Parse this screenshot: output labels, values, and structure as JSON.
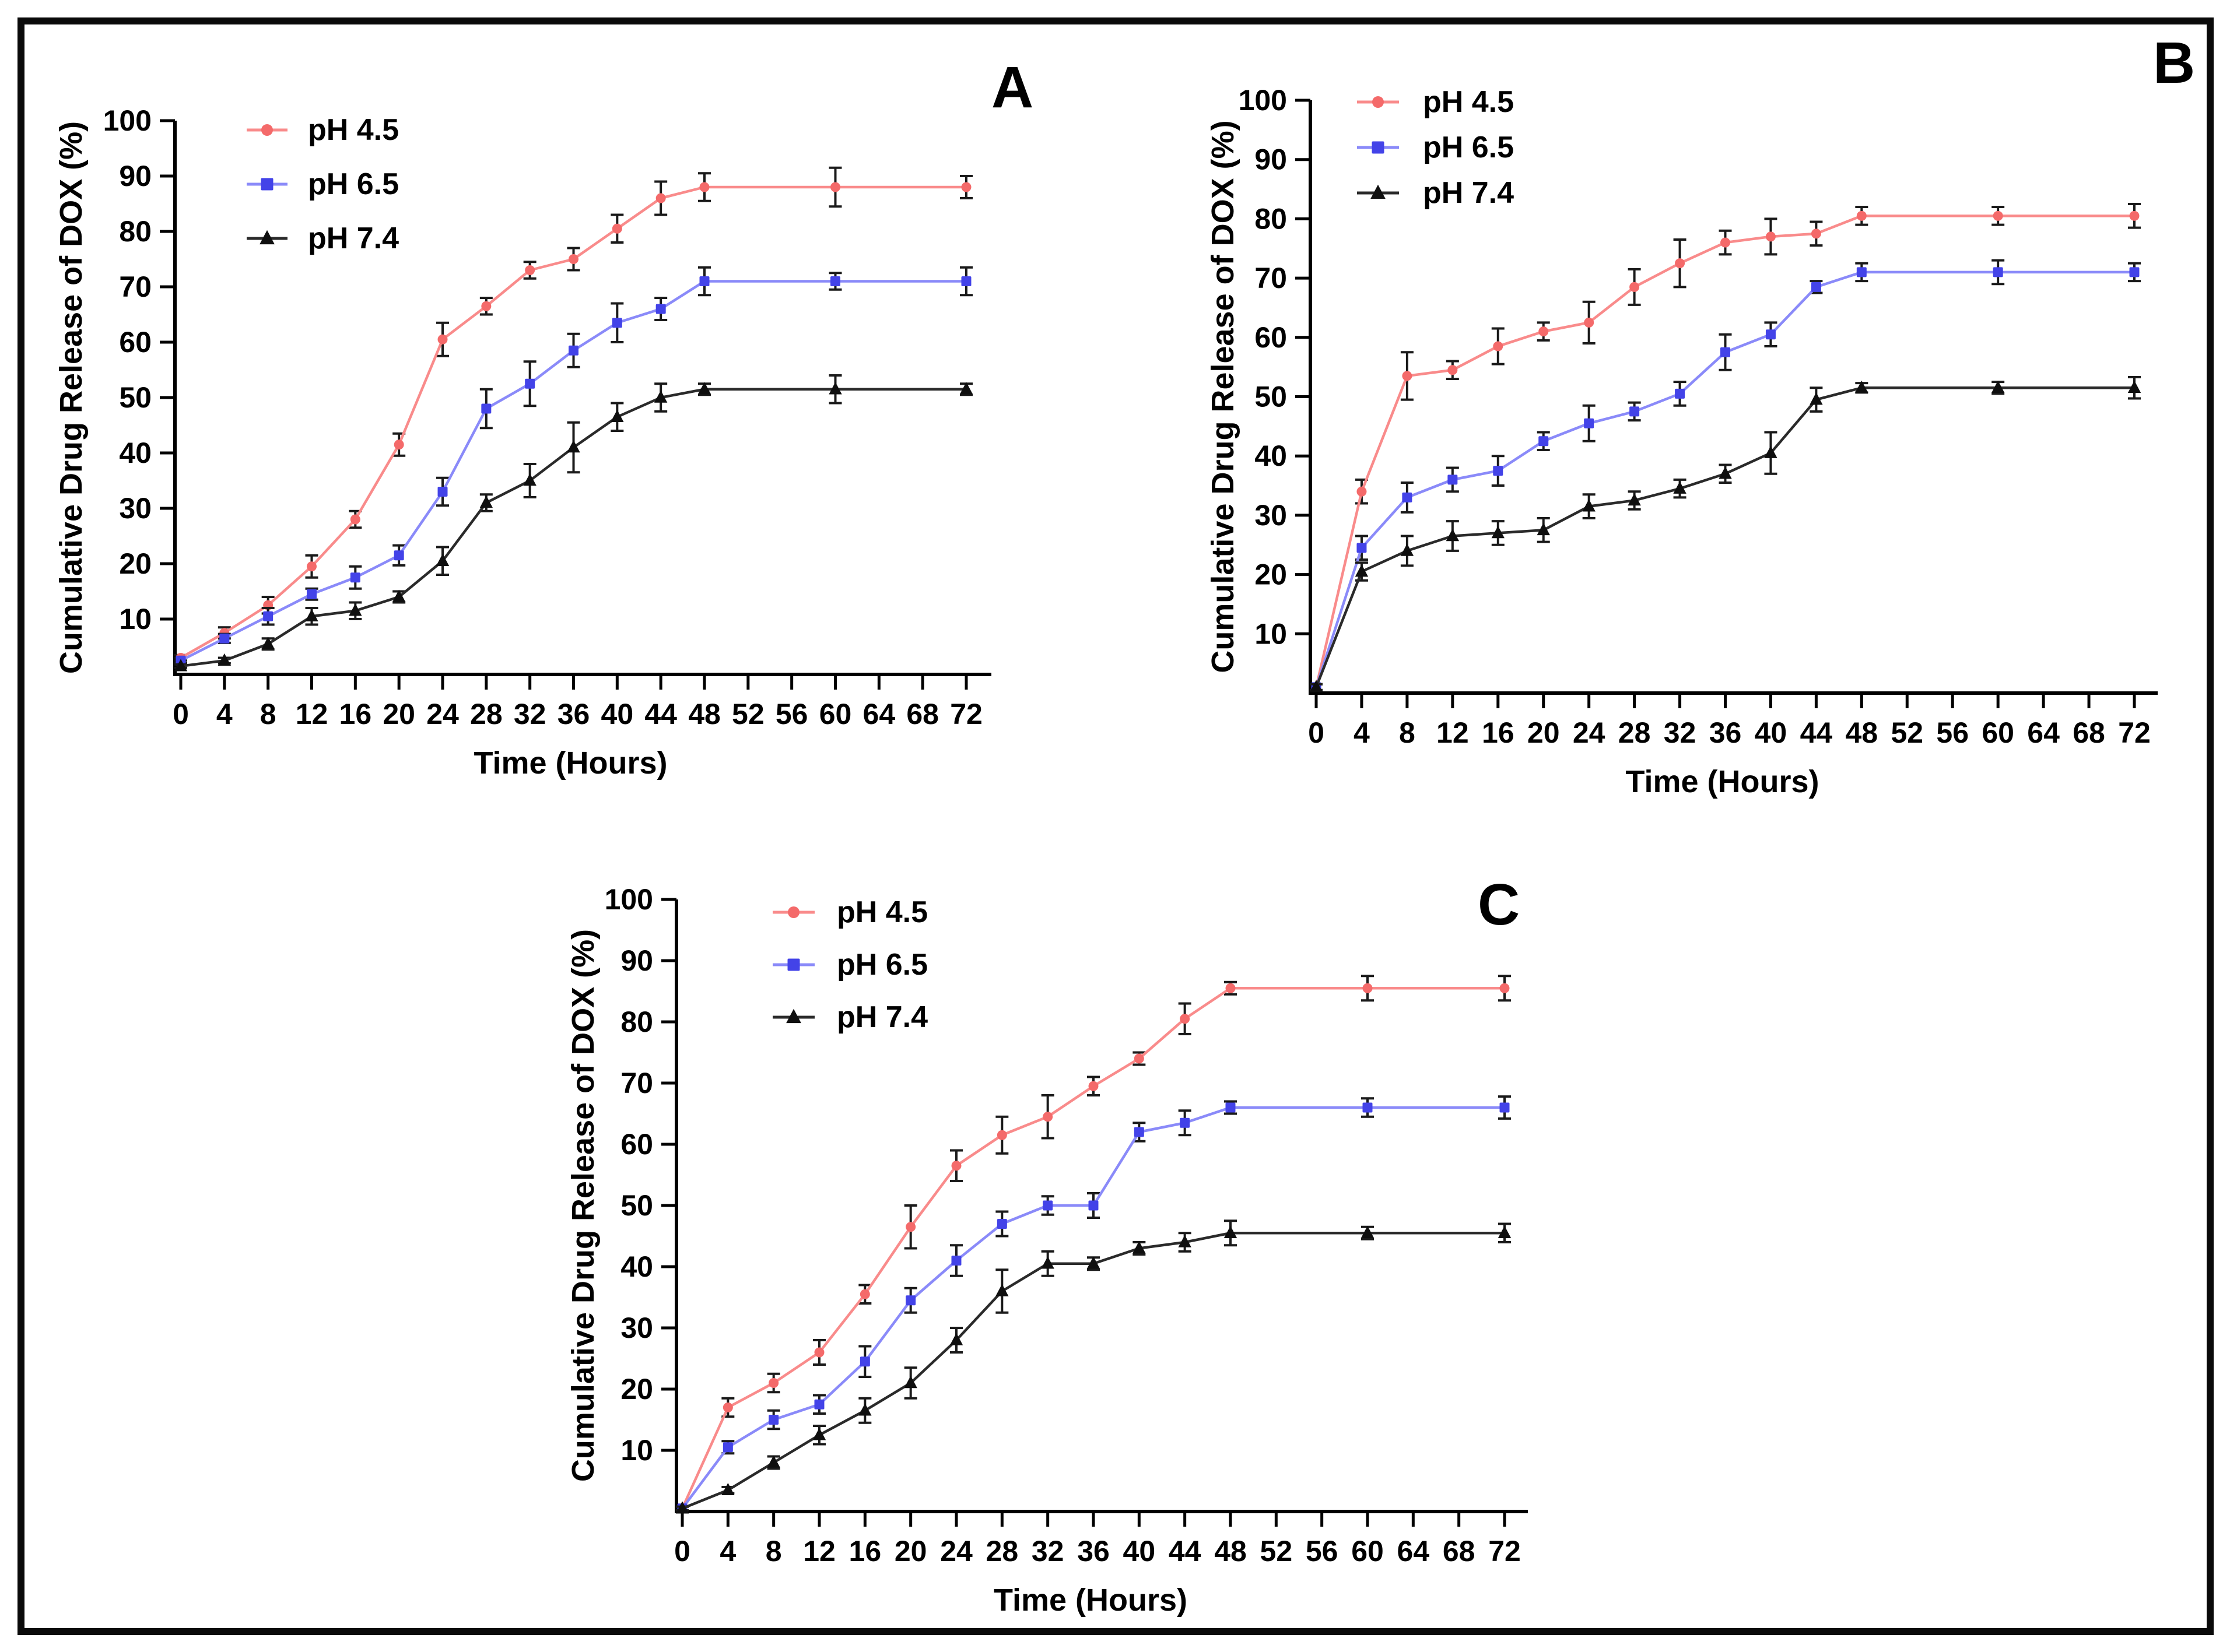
{
  "figure": {
    "background": "#ffffff",
    "border_color": "#0a0a0a",
    "text_color": "#000000",
    "axis_color": "#000000",
    "error_bar_color": "#1a1a1a"
  },
  "chart_data": [
    {
      "panel_label": "A",
      "type": "line",
      "xlabel": "Time (Hours)",
      "ylabel": "Cumulative Drug Release of DOX (%)",
      "xlim": [
        0,
        72
      ],
      "ylim": [
        0,
        100
      ],
      "grid": false,
      "legend_position": "top-left-inside",
      "xticks": [
        0,
        4,
        8,
        12,
        16,
        20,
        24,
        28,
        32,
        36,
        40,
        44,
        48,
        52,
        56,
        60,
        64,
        68,
        72
      ],
      "yticks": [
        10,
        20,
        30,
        40,
        50,
        60,
        70,
        80,
        90,
        100
      ],
      "x": [
        0,
        4,
        8,
        12,
        16,
        20,
        24,
        28,
        32,
        36,
        40,
        44,
        48,
        60,
        72
      ],
      "series": [
        {
          "name": "pH 4.5",
          "marker": "circle",
          "line_color": "#F98B8B",
          "marker_color": "#F46A6A",
          "values": [
            3,
            7.5,
            12.5,
            19.5,
            28,
            41.5,
            60.5,
            66.5,
            73,
            75,
            80.5,
            86,
            88,
            88,
            88
          ],
          "errors": [
            0.5,
            1,
            1.5,
            2,
            1.5,
            2,
            3,
            1.5,
            1.5,
            2,
            2.5,
            3,
            2.5,
            3.5,
            2
          ]
        },
        {
          "name": "pH 6.5",
          "marker": "square",
          "line_color": "#8A8AF9",
          "marker_color": "#4343E8",
          "values": [
            2.5,
            6.5,
            10.5,
            14.5,
            17.5,
            21.5,
            33,
            48,
            52.5,
            58.5,
            63.5,
            66,
            71,
            71,
            71
          ],
          "errors": [
            0.5,
            0.8,
            1.5,
            1,
            2,
            1.8,
            2.5,
            3.5,
            4,
            3,
            3.5,
            2,
            2.5,
            1.5,
            2.5
          ]
        },
        {
          "name": "pH 7.4",
          "marker": "triangle",
          "line_color": "#2A2A2A",
          "marker_color": "#0F0F0F",
          "values": [
            1.5,
            2.5,
            5.5,
            10.5,
            11.5,
            14,
            20.5,
            31,
            35,
            41,
            46.5,
            50,
            51.5,
            51.5,
            51.5
          ],
          "errors": [
            0.3,
            0.5,
            1,
            1.5,
            1.5,
            1,
            2.5,
            1.5,
            3,
            4.5,
            2.5,
            2.5,
            1,
            2.5,
            1
          ]
        }
      ]
    },
    {
      "panel_label": "B",
      "type": "line",
      "xlabel": "Time (Hours)",
      "ylabel": "Cumulative Drug Release of DOX (%)",
      "xlim": [
        0,
        72
      ],
      "ylim": [
        0,
        100
      ],
      "grid": false,
      "legend_position": "top-left-inside",
      "xticks": [
        0,
        4,
        8,
        12,
        16,
        20,
        24,
        28,
        32,
        36,
        40,
        44,
        48,
        52,
        56,
        60,
        64,
        68,
        72
      ],
      "yticks": [
        10,
        20,
        30,
        40,
        50,
        60,
        70,
        80,
        90,
        100
      ],
      "x": [
        0,
        4,
        8,
        12,
        16,
        20,
        24,
        28,
        32,
        36,
        40,
        44,
        48,
        60,
        72
      ],
      "series": [
        {
          "name": "pH 4.5",
          "marker": "circle",
          "line_color": "#F98B8B",
          "marker_color": "#F46A6A",
          "values": [
            1,
            34,
            53.5,
            54.5,
            58.5,
            61,
            62.5,
            68.5,
            72.5,
            76,
            77,
            77.5,
            80.5,
            80.5,
            80.5
          ],
          "errors": [
            0.5,
            2,
            4,
            1.5,
            3,
            1.5,
            3.5,
            3,
            4,
            2,
            3,
            2,
            1.5,
            1.5,
            2
          ]
        },
        {
          "name": "pH 6.5",
          "marker": "square",
          "line_color": "#8A8AF9",
          "marker_color": "#4343E8",
          "values": [
            1,
            24.5,
            33,
            36,
            37.5,
            42.5,
            45.5,
            47.5,
            50.5,
            57.5,
            60.5,
            68.5,
            71,
            71,
            71
          ],
          "errors": [
            0.5,
            2,
            2.5,
            2,
            2.5,
            1.5,
            3,
            1.5,
            2,
            3,
            2,
            1,
            1.5,
            2,
            1.5
          ]
        },
        {
          "name": "pH 7.4",
          "marker": "triangle",
          "line_color": "#2A2A2A",
          "marker_color": "#0F0F0F",
          "values": [
            1,
            20.5,
            24,
            26.5,
            27,
            27.5,
            31.5,
            32.5,
            34.5,
            37,
            40.5,
            49.5,
            51.5,
            51.5,
            51.5
          ],
          "errors": [
            0.5,
            1.5,
            2.5,
            2.5,
            2,
            2,
            2,
            1.5,
            1.5,
            1.5,
            3.5,
            2,
            0.8,
            1,
            1.8
          ]
        }
      ]
    },
    {
      "panel_label": "C",
      "type": "line",
      "xlabel": "Time (Hours)",
      "ylabel": "Cumulative Drug Release of DOX (%)",
      "xlim": [
        0,
        72
      ],
      "ylim": [
        0,
        100
      ],
      "grid": false,
      "legend_position": "top-left-inside",
      "xticks": [
        0,
        4,
        8,
        12,
        16,
        20,
        24,
        28,
        32,
        36,
        40,
        44,
        48,
        52,
        56,
        60,
        64,
        68,
        72
      ],
      "yticks": [
        10,
        20,
        30,
        40,
        50,
        60,
        70,
        80,
        90,
        100
      ],
      "x": [
        0,
        4,
        8,
        12,
        16,
        20,
        24,
        28,
        32,
        36,
        40,
        44,
        48,
        60,
        72
      ],
      "series": [
        {
          "name": "pH 4.5",
          "marker": "circle",
          "line_color": "#F98B8B",
          "marker_color": "#F46A6A",
          "values": [
            0.5,
            17,
            21,
            26,
            35.5,
            46.5,
            56.5,
            61.5,
            64.5,
            69.5,
            74,
            80.5,
            85.5,
            85.5,
            85.5
          ],
          "errors": [
            0.3,
            1.5,
            1.5,
            2,
            1.5,
            3.5,
            2.5,
            3,
            3.5,
            1.5,
            1,
            2.5,
            1,
            2,
            2
          ]
        },
        {
          "name": "pH 6.5",
          "marker": "square",
          "line_color": "#8A8AF9",
          "marker_color": "#4343E8",
          "values": [
            0.5,
            10.5,
            15,
            17.5,
            24.5,
            34.5,
            41,
            47,
            50,
            50,
            62,
            63.5,
            66,
            66,
            66
          ],
          "errors": [
            0.3,
            1,
            1.5,
            1.5,
            2.5,
            2,
            2.5,
            2,
            1.5,
            2,
            1.5,
            2,
            1,
            1.5,
            1.8
          ]
        },
        {
          "name": "pH 7.4",
          "marker": "triangle",
          "line_color": "#2A2A2A",
          "marker_color": "#0F0F0F",
          "values": [
            0.5,
            3.5,
            8,
            12.5,
            16.5,
            21,
            28,
            36,
            40.5,
            40.5,
            43,
            44,
            45.5,
            45.5,
            45.5
          ],
          "errors": [
            0.3,
            0.5,
            1,
            1.5,
            2,
            2.5,
            2,
            3.5,
            2,
            1,
            1,
            1.5,
            2,
            1,
            1.5
          ]
        }
      ]
    }
  ]
}
